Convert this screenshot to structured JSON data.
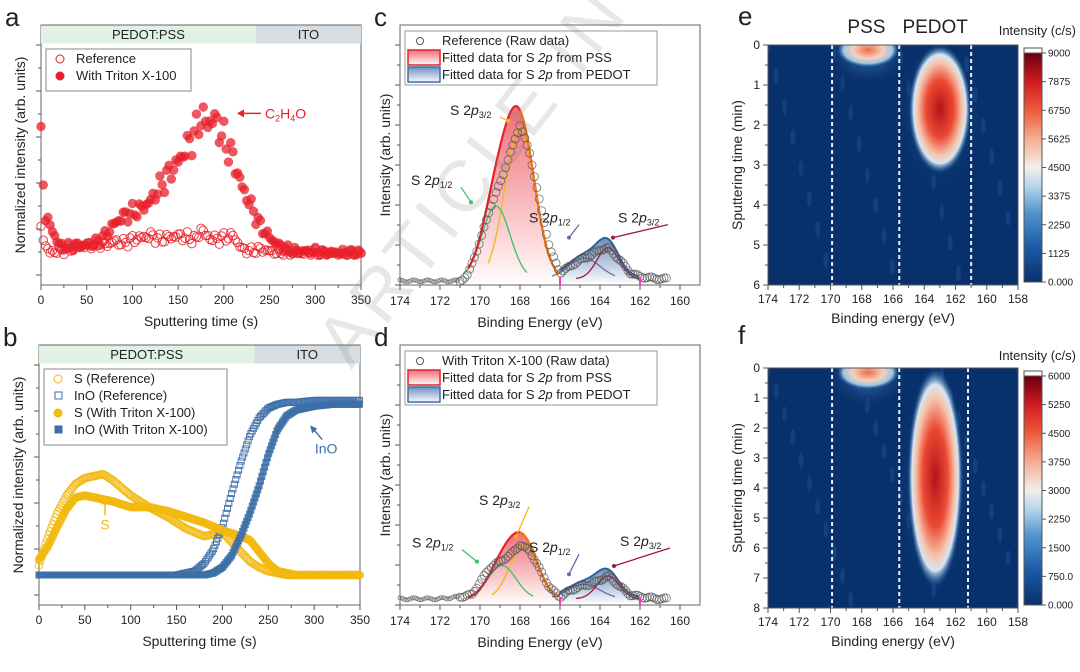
{
  "watermark": "ARTICLE IN PRESS",
  "chart_data": [
    {
      "panel": "a",
      "type": "scatter",
      "title": "",
      "xlabel": "Sputtering time (s)",
      "ylabel": "Normalized intensity (arb. units)",
      "xlim": [
        0,
        350
      ],
      "ylim": [
        0,
        1
      ],
      "xticks": [
        "0",
        "50",
        "100",
        "150",
        "200",
        "250",
        "300",
        "350"
      ],
      "regions": [
        {
          "label": "PEDOT:PSS",
          "from": 0,
          "to": 235,
          "color": "#dff2e4"
        },
        {
          "label": "ITO",
          "from": 235,
          "to": 350,
          "color": "#d6dee3"
        }
      ],
      "legend_position": "top-left",
      "annotations": [
        {
          "text": "C2H4O",
          "x": 210,
          "y": 0.73,
          "color": "#e8202a"
        }
      ],
      "series": [
        {
          "name": "Reference",
          "marker": "open-circle",
          "color": "#e8202a",
          "x": [
            0,
            5,
            10,
            15,
            20,
            30,
            40,
            50,
            60,
            70,
            80,
            90,
            100,
            110,
            120,
            130,
            140,
            150,
            160,
            170,
            175,
            180,
            190,
            200,
            210,
            220,
            230,
            240,
            250,
            260,
            270,
            280,
            290,
            300,
            310,
            320,
            330,
            340,
            350
          ],
          "y": [
            0.13,
            0.05,
            0.01,
            0.02,
            0.02,
            0.03,
            0.04,
            0.05,
            0.06,
            0.05,
            0.07,
            0.06,
            0.08,
            0.09,
            0.1,
            0.08,
            0.09,
            0.1,
            0.09,
            0.08,
            0.14,
            0.1,
            0.08,
            0.09,
            0.1,
            0.03,
            0.02,
            0.03,
            0.02,
            0.01,
            0.01,
            0.01,
            0.01,
            0.01,
            0.01,
            0.01,
            0.01,
            0.01,
            0.01
          ]
        },
        {
          "name": "With Triton X-100",
          "marker": "filled-circle",
          "color": "#e8202a",
          "x": [
            0,
            5,
            10,
            15,
            20,
            30,
            40,
            50,
            60,
            70,
            80,
            90,
            100,
            110,
            120,
            130,
            140,
            150,
            160,
            170,
            175,
            180,
            190,
            200,
            210,
            220,
            230,
            240,
            250,
            260,
            270,
            280,
            290,
            300,
            310,
            320,
            330,
            340,
            350
          ],
          "y": [
            0.58,
            0.2,
            0.15,
            0.1,
            0.05,
            0.04,
            0.05,
            0.05,
            0.06,
            0.1,
            0.16,
            0.2,
            0.22,
            0.24,
            0.28,
            0.35,
            0.42,
            0.48,
            0.56,
            0.64,
            0.72,
            0.68,
            0.7,
            0.6,
            0.5,
            0.35,
            0.25,
            0.15,
            0.09,
            0.05,
            0.03,
            0.02,
            0.02,
            0.02,
            0.01,
            0.01,
            0.01,
            0.01,
            0.01
          ]
        }
      ]
    },
    {
      "panel": "b",
      "type": "scatter",
      "title": "",
      "xlabel": "Sputtering time (s)",
      "ylabel": "Normalized intensity (arb. units)",
      "xlim": [
        0,
        350
      ],
      "ylim": [
        0,
        1
      ],
      "xticks": [
        "0",
        "50",
        "100",
        "150",
        "200",
        "250",
        "300",
        "350"
      ],
      "regions": [
        {
          "label": "PEDOT:PSS",
          "from": 0,
          "to": 235,
          "color": "#dff2e4"
        },
        {
          "label": "ITO",
          "from": 235,
          "to": 350,
          "color": "#d6dee3"
        }
      ],
      "legend_position": "top-left",
      "annotations": [
        {
          "text": "S",
          "x": 72,
          "y": 0.38,
          "color": "#f2b90f"
        },
        {
          "text": "InO",
          "x": 300,
          "y": 0.76,
          "color": "#3d6fa8"
        }
      ],
      "series": [
        {
          "name": "S (Reference)",
          "marker": "open-circle",
          "color": "#f2b90f",
          "x": [
            0,
            10,
            20,
            30,
            40,
            50,
            60,
            70,
            80,
            90,
            100,
            120,
            140,
            160,
            180,
            200,
            210,
            220,
            230,
            240,
            250,
            260,
            270,
            280,
            300,
            350
          ],
          "y": [
            0.05,
            0.2,
            0.32,
            0.41,
            0.47,
            0.5,
            0.51,
            0.52,
            0.49,
            0.45,
            0.41,
            0.35,
            0.3,
            0.24,
            0.2,
            0.22,
            0.17,
            0.12,
            0.07,
            0.04,
            0.02,
            0.01,
            0.0,
            0.0,
            0.0,
            0.0
          ]
        },
        {
          "name": "InO (Reference)",
          "marker": "open-square",
          "color": "#3d6fa8",
          "x": [
            0,
            150,
            170,
            180,
            190,
            200,
            210,
            220,
            230,
            240,
            250,
            260,
            270,
            280,
            300,
            320,
            350
          ],
          "y": [
            0.0,
            0.0,
            0.02,
            0.06,
            0.13,
            0.25,
            0.42,
            0.58,
            0.72,
            0.81,
            0.86,
            0.88,
            0.89,
            0.89,
            0.9,
            0.9,
            0.9
          ]
        },
        {
          "name": "S (With Triton X-100)",
          "marker": "filled-circle",
          "color": "#f2b90f",
          "x": [
            0,
            10,
            20,
            30,
            40,
            50,
            60,
            70,
            80,
            100,
            120,
            140,
            160,
            180,
            200,
            220,
            230,
            240,
            250,
            260,
            270,
            280,
            300,
            350
          ],
          "y": [
            0.08,
            0.15,
            0.25,
            0.34,
            0.4,
            0.41,
            0.4,
            0.39,
            0.38,
            0.35,
            0.35,
            0.33,
            0.3,
            0.27,
            0.23,
            0.2,
            0.18,
            0.12,
            0.06,
            0.02,
            0.01,
            0.0,
            0.0,
            0.0
          ]
        },
        {
          "name": "InO (With Triton X-100)",
          "marker": "filled-square",
          "color": "#3d6fa8",
          "x": [
            0,
            180,
            190,
            200,
            210,
            220,
            230,
            240,
            250,
            260,
            270,
            280,
            290,
            300,
            320,
            350
          ],
          "y": [
            0.0,
            0.0,
            0.01,
            0.04,
            0.1,
            0.2,
            0.32,
            0.46,
            0.62,
            0.75,
            0.82,
            0.85,
            0.86,
            0.87,
            0.88,
            0.88
          ]
        }
      ]
    },
    {
      "panel": "c",
      "type": "line",
      "title": "",
      "xlabel": "Binding Energy (eV)",
      "ylabel": "Intensity (arb. units)",
      "xlim": [
        174,
        160
      ],
      "ylim": [
        0,
        1
      ],
      "xticks": [
        "174",
        "172",
        "170",
        "168",
        "166",
        "164",
        "162",
        "160"
      ],
      "legend_position": "top-left",
      "legend": [
        "Reference (Raw data)",
        "Fitted data for S 2p from PSS",
        "Fitted data for S 2p from PEDOT"
      ],
      "peak_labels": [
        {
          "base": "S 2p",
          "sub": "3/2",
          "x": 168.0,
          "y": 0.76,
          "arrow_color": "#f2b90f"
        },
        {
          "base": "S 2p",
          "sub": "1/2",
          "x": 169.2,
          "y": 0.35,
          "arrow_color": "#3dbf6a"
        },
        {
          "base": "S 2p",
          "sub": "1/2",
          "x": 164.8,
          "y": 0.17,
          "arrow_color": "#6a6ab0"
        },
        {
          "base": "S 2p",
          "sub": "3/2",
          "x": 163.6,
          "y": 0.17,
          "arrow_color": "#a01840"
        }
      ],
      "raw_data": {
        "x": [
          174,
          172,
          171,
          170.6,
          170,
          169.5,
          169,
          168.5,
          168,
          167.5,
          167,
          166.5,
          166,
          165.5,
          165,
          164.5,
          164,
          163.6,
          163,
          162.5,
          162,
          161
        ],
        "y": [
          0.01,
          0.01,
          0.01,
          0.04,
          0.2,
          0.36,
          0.48,
          0.62,
          0.76,
          0.62,
          0.38,
          0.16,
          0.05,
          0.08,
          0.11,
          0.13,
          0.16,
          0.17,
          0.11,
          0.05,
          0.03,
          0.02
        ]
      },
      "components": [
        {
          "name": "PSS S 2p3/2",
          "center": 168.0,
          "height": 0.73,
          "width": 0.75,
          "color": "#f2b90f"
        },
        {
          "name": "PSS S 2p1/2",
          "center": 169.2,
          "height": 0.35,
          "width": 0.7,
          "color": "#3dbf6a"
        },
        {
          "name": "PEDOT S 2p1/2",
          "center": 164.8,
          "height": 0.1,
          "width": 0.8,
          "color": "#6a6ab0"
        },
        {
          "name": "PEDOT S 2p3/2",
          "center": 163.6,
          "height": 0.15,
          "width": 0.55,
          "color": "#a01840"
        }
      ],
      "envelope_colors": {
        "pss": "#e8202a",
        "pedot": "#2f5fa0",
        "pss_tail": "#f07b10"
      }
    },
    {
      "panel": "d",
      "type": "line",
      "title": "",
      "xlabel": "Binding Energy (eV)",
      "ylabel": "Intensity (arb. units)",
      "xlim": [
        174,
        160
      ],
      "ylim": [
        0,
        1
      ],
      "xticks": [
        "174",
        "172",
        "170",
        "168",
        "166",
        "164",
        "162",
        "160"
      ],
      "legend_position": "top-left",
      "legend": [
        "With Triton X-100 (Raw data)",
        "Fitted data for S 2p from PSS",
        "Fitted data for S 2p from PEDOT"
      ],
      "peak_labels": [
        {
          "base": "S 2p",
          "sub": "3/2",
          "x": 167.8,
          "y": 0.28,
          "arrow_color": "#f2b90f"
        },
        {
          "base": "S 2p",
          "sub": "1/2",
          "x": 168.9,
          "y": 0.17,
          "arrow_color": "#3dbf6a"
        },
        {
          "base": "S 2p",
          "sub": "1/2",
          "x": 164.8,
          "y": 0.1,
          "arrow_color": "#6a6ab0"
        },
        {
          "base": "S 2p",
          "sub": "3/2",
          "x": 163.6,
          "y": 0.13,
          "arrow_color": "#a01840"
        }
      ],
      "raw_data": {
        "x": [
          174,
          172,
          171,
          170.4,
          170,
          169.5,
          169,
          168.5,
          168,
          167.5,
          167,
          166.5,
          166,
          165.5,
          165,
          164.5,
          164,
          163.6,
          163,
          162.5,
          162,
          161
        ],
        "y": [
          0.02,
          0.02,
          0.03,
          0.04,
          0.1,
          0.17,
          0.2,
          0.23,
          0.28,
          0.25,
          0.16,
          0.07,
          0.03,
          0.06,
          0.08,
          0.09,
          0.11,
          0.13,
          0.08,
          0.04,
          0.03,
          0.02
        ]
      },
      "components": [
        {
          "name": "PSS S 2p3/2",
          "center": 167.8,
          "height": 0.26,
          "width": 0.7,
          "color": "#f2b90f"
        },
        {
          "name": "PSS S 2p1/2",
          "center": 168.9,
          "height": 0.16,
          "width": 0.7,
          "color": "#3dbf6a"
        },
        {
          "name": "PEDOT S 2p1/2",
          "center": 164.8,
          "height": 0.07,
          "width": 0.8,
          "color": "#6a6ab0"
        },
        {
          "name": "PEDOT S 2p3/2",
          "center": 163.6,
          "height": 0.11,
          "width": 0.55,
          "color": "#a01840"
        }
      ],
      "envelope_colors": {
        "pss": "#e8202a",
        "pedot": "#2f5fa0",
        "pss_tail": "#f07b10"
      }
    },
    {
      "panel": "e",
      "type": "heatmap",
      "title": "",
      "header_labels": [
        "PSS",
        "PEDOT"
      ],
      "xlabel": "Binding energy (eV)",
      "ylabel": "Sputtering time (min)",
      "xlim": [
        174,
        158
      ],
      "ylim": [
        0,
        6
      ],
      "xticks": [
        "174",
        "172",
        "170",
        "168",
        "166",
        "164",
        "162",
        "160",
        "158"
      ],
      "yticks": [
        "0",
        "1",
        "2",
        "3",
        "4",
        "5",
        "6"
      ],
      "dashed_lines_x": [
        169.9,
        165.6,
        161.0
      ],
      "colorbar": {
        "title": "Intensity (c/s)",
        "min": 0,
        "max": 9000,
        "ticks": [
          "9000",
          "7875",
          "6750",
          "5625",
          "4500",
          "3375",
          "2250",
          "1125",
          "0.000"
        ]
      },
      "hotspots": [
        {
          "label": "PEDOT",
          "center_x": 163.0,
          "center_y": 1.6,
          "x_halfwidth": 0.9,
          "y_from": 0.3,
          "y_to": 2.9,
          "peak": 9000
        },
        {
          "label": "PSS",
          "center_x": 167.6,
          "center_y": 0.0,
          "x_halfwidth": 0.9,
          "y_from": 0.0,
          "y_to": 0.25,
          "peak": 6500
        }
      ]
    },
    {
      "panel": "f",
      "type": "heatmap",
      "title": "",
      "xlabel": "Binding energy (eV)",
      "ylabel": "Sputtering time (min)",
      "xlim": [
        174,
        158
      ],
      "ylim": [
        0,
        8
      ],
      "xticks": [
        "174",
        "172",
        "170",
        "168",
        "166",
        "164",
        "162",
        "160",
        "158"
      ],
      "yticks": [
        "0",
        "1",
        "2",
        "3",
        "4",
        "5",
        "6",
        "7",
        "8"
      ],
      "dashed_lines_x": [
        169.9,
        165.6,
        161.2
      ],
      "colorbar": {
        "title": "Intensity (c/s)",
        "min": 0,
        "max": 6000,
        "ticks": [
          "6000",
          "5250",
          "4500",
          "3750",
          "3000",
          "2250",
          "1500",
          "750.0",
          "0.000"
        ]
      },
      "hotspots": [
        {
          "label": "PEDOT",
          "center_x": 163.3,
          "center_y": 3.8,
          "x_halfwidth": 0.8,
          "y_from": 0.4,
          "y_to": 6.9,
          "peak": 5300
        },
        {
          "label": "PSS",
          "center_x": 167.6,
          "center_y": 0.0,
          "x_halfwidth": 0.9,
          "y_from": 0.0,
          "y_to": 0.3,
          "peak": 2500
        }
      ]
    }
  ],
  "panel_letters": [
    "a",
    "b",
    "c",
    "d",
    "e",
    "f"
  ]
}
